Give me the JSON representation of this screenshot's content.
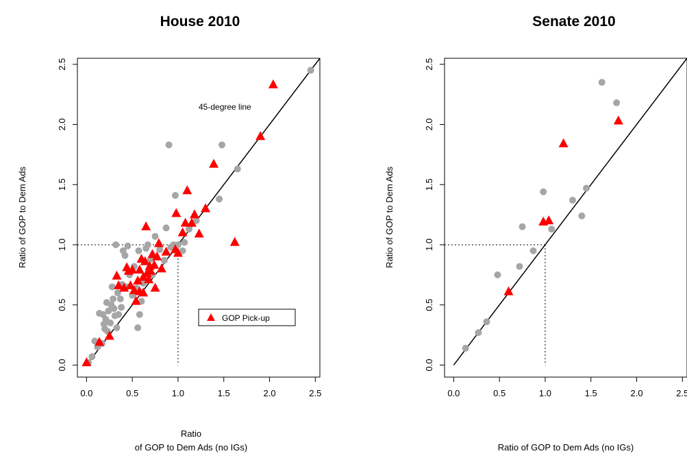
{
  "chart_data": [
    {
      "type": "scatter",
      "title": "House 2010",
      "xlabel_lines": [
        "Ratio",
        "of GOP to Dem Ads (no IGs)"
      ],
      "ylabel": "Ratio of GOP to Dem Ads",
      "xlim": [
        -0.1,
        2.55
      ],
      "ylim": [
        -0.1,
        2.55
      ],
      "xticks": [
        "0.0",
        "0.5",
        "1.0",
        "1.5",
        "2.0",
        "2.5"
      ],
      "yticks": [
        "0.0",
        "0.5",
        "1.0",
        "1.5",
        "2.0",
        "2.5"
      ],
      "annotation": "45-degree line",
      "legend": {
        "label": "GOP Pick-up",
        "position": "bottom-right"
      },
      "reference_lines": {
        "diagonal": true,
        "dotted_at": 1.0
      },
      "colors": {
        "other": "#a6a6a6",
        "pickup": "#ff0000",
        "line": "#000000"
      },
      "series": [
        {
          "marker": "circle",
          "points": [
            [
              0.02,
              0.02
            ],
            [
              0.06,
              0.07
            ],
            [
              0.09,
              0.2
            ],
            [
              0.12,
              0.15
            ],
            [
              0.14,
              0.43
            ],
            [
              0.17,
              0.18
            ],
            [
              0.18,
              0.42
            ],
            [
              0.19,
              0.34
            ],
            [
              0.2,
              0.3
            ],
            [
              0.21,
              0.38
            ],
            [
              0.22,
              0.52
            ],
            [
              0.23,
              0.28
            ],
            [
              0.24,
              0.45
            ],
            [
              0.26,
              0.35
            ],
            [
              0.27,
              0.5
            ],
            [
              0.28,
              0.65
            ],
            [
              0.29,
              0.55
            ],
            [
              0.3,
              0.47
            ],
            [
              0.31,
              0.41
            ],
            [
              0.32,
              1.0
            ],
            [
              0.33,
              0.31
            ],
            [
              0.34,
              0.6
            ],
            [
              0.35,
              0.42
            ],
            [
              0.37,
              0.55
            ],
            [
              0.38,
              0.48
            ],
            [
              0.39,
              0.67
            ],
            [
              0.4,
              0.95
            ],
            [
              0.42,
              0.91
            ],
            [
              0.44,
              0.65
            ],
            [
              0.45,
              0.99
            ],
            [
              0.47,
              0.75
            ],
            [
              0.5,
              0.58
            ],
            [
              0.52,
              0.82
            ],
            [
              0.55,
              0.64
            ],
            [
              0.56,
              0.31
            ],
            [
              0.57,
              0.95
            ],
            [
              0.58,
              0.42
            ],
            [
              0.6,
              0.53
            ],
            [
              0.62,
              0.68
            ],
            [
              0.65,
              0.97
            ],
            [
              0.67,
              1.0
            ],
            [
              0.7,
              0.88
            ],
            [
              0.72,
              0.75
            ],
            [
              0.75,
              1.07
            ],
            [
              0.8,
              0.96
            ],
            [
              0.85,
              0.87
            ],
            [
              0.87,
              1.14
            ],
            [
              0.9,
              1.83
            ],
            [
              0.92,
              0.98
            ],
            [
              0.95,
              1.0
            ],
            [
              0.97,
              1.41
            ],
            [
              1.0,
              1.0
            ],
            [
              1.05,
              0.95
            ],
            [
              1.07,
              1.02
            ],
            [
              1.12,
              1.13
            ],
            [
              1.2,
              1.2
            ],
            [
              1.45,
              1.38
            ],
            [
              1.48,
              1.83
            ],
            [
              1.65,
              1.63
            ],
            [
              2.45,
              2.45
            ]
          ]
        },
        {
          "name": "GOP Pick-up",
          "marker": "triangle",
          "points": [
            [
              0.0,
              0.02
            ],
            [
              0.14,
              0.19
            ],
            [
              0.25,
              0.24
            ],
            [
              0.33,
              0.74
            ],
            [
              0.35,
              0.66
            ],
            [
              0.41,
              0.64
            ],
            [
              0.44,
              0.81
            ],
            [
              0.46,
              0.78
            ],
            [
              0.48,
              0.66
            ],
            [
              0.5,
              0.79
            ],
            [
              0.52,
              0.62
            ],
            [
              0.54,
              0.53
            ],
            [
              0.56,
              0.7
            ],
            [
              0.58,
              0.79
            ],
            [
              0.58,
              0.61
            ],
            [
              0.6,
              0.88
            ],
            [
              0.62,
              0.6
            ],
            [
              0.62,
              0.73
            ],
            [
              0.64,
              0.86
            ],
            [
              0.65,
              1.15
            ],
            [
              0.66,
              0.76
            ],
            [
              0.68,
              0.71
            ],
            [
              0.69,
              0.82
            ],
            [
              0.7,
              0.78
            ],
            [
              0.72,
              0.92
            ],
            [
              0.74,
              0.83
            ],
            [
              0.75,
              0.64
            ],
            [
              0.77,
              0.9
            ],
            [
              0.79,
              1.01
            ],
            [
              0.82,
              0.8
            ],
            [
              0.87,
              0.94
            ],
            [
              0.97,
              0.96
            ],
            [
              0.98,
              1.26
            ],
            [
              1.0,
              0.93
            ],
            [
              1.05,
              1.1
            ],
            [
              1.08,
              1.18
            ],
            [
              1.1,
              1.45
            ],
            [
              1.15,
              1.18
            ],
            [
              1.18,
              1.25
            ],
            [
              1.23,
              1.09
            ],
            [
              1.3,
              1.3
            ],
            [
              1.39,
              1.67
            ],
            [
              1.62,
              1.02
            ],
            [
              1.9,
              1.9
            ],
            [
              2.04,
              2.33
            ]
          ]
        }
      ]
    },
    {
      "type": "scatter",
      "title": "Senate 2010",
      "xlabel_lines": [
        "Ratio of GOP to Dem Ads (no IGs)"
      ],
      "ylabel": "Ratio of GOP to Dem Ads",
      "xlim": [
        -0.1,
        2.55
      ],
      "ylim": [
        -0.1,
        2.55
      ],
      "xticks": [
        "0.0",
        "0.5",
        "1.0",
        "1.5",
        "2.0",
        "2.5"
      ],
      "yticks": [
        "0.0",
        "0.5",
        "1.0",
        "1.5",
        "2.0",
        "2.5"
      ],
      "reference_lines": {
        "diagonal": true,
        "dotted_at": 1.0
      },
      "colors": {
        "other": "#a6a6a6",
        "pickup": "#ff0000",
        "line": "#000000"
      },
      "series": [
        {
          "marker": "circle",
          "points": [
            [
              0.13,
              0.14
            ],
            [
              0.27,
              0.27
            ],
            [
              0.36,
              0.36
            ],
            [
              0.48,
              0.75
            ],
            [
              0.72,
              0.82
            ],
            [
              0.75,
              1.15
            ],
            [
              0.87,
              0.95
            ],
            [
              0.98,
              1.44
            ],
            [
              1.07,
              1.13
            ],
            [
              1.3,
              1.37
            ],
            [
              1.4,
              1.24
            ],
            [
              1.45,
              1.47
            ],
            [
              1.62,
              2.35
            ],
            [
              1.78,
              2.18
            ]
          ]
        },
        {
          "name": "GOP Pick-up",
          "marker": "triangle",
          "points": [
            [
              0.6,
              0.61
            ],
            [
              0.98,
              1.19
            ],
            [
              1.04,
              1.2
            ],
            [
              1.2,
              1.84
            ],
            [
              1.8,
              2.03
            ]
          ]
        }
      ]
    }
  ]
}
